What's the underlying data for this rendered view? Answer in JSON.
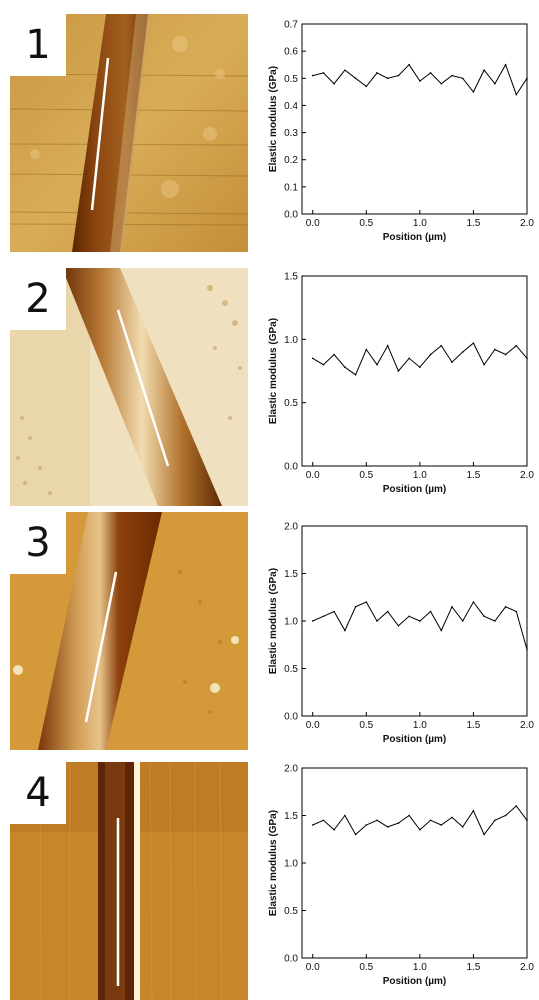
{
  "panels": [
    {
      "label": "1"
    },
    {
      "label": "2"
    },
    {
      "label": "3"
    },
    {
      "label": "4"
    }
  ],
  "chart_data": [
    {
      "type": "line",
      "xlabel": "Position (µm)",
      "ylabel": "Elastic modulus (GPa)",
      "xlim": [
        -0.1,
        2.0
      ],
      "ylim": [
        0.0,
        0.7
      ],
      "xticks": [
        "0.0",
        "0.5",
        "1.0",
        "1.5",
        "2.0"
      ],
      "yticks": [
        "0.0",
        "0.1",
        "0.2",
        "0.3",
        "0.4",
        "0.5",
        "0.6",
        "0.7"
      ],
      "ytick_values": [
        0.0,
        0.1,
        0.2,
        0.3,
        0.4,
        0.5,
        0.6,
        0.7
      ],
      "x": [
        0.0,
        0.1,
        0.2,
        0.3,
        0.4,
        0.5,
        0.6,
        0.7,
        0.8,
        0.9,
        1.0,
        1.1,
        1.2,
        1.3,
        1.4,
        1.5,
        1.6,
        1.7,
        1.8,
        1.9,
        2.0
      ],
      "values": [
        0.51,
        0.52,
        0.48,
        0.53,
        0.5,
        0.47,
        0.52,
        0.5,
        0.51,
        0.55,
        0.49,
        0.52,
        0.48,
        0.51,
        0.5,
        0.45,
        0.53,
        0.48,
        0.55,
        0.44,
        0.5
      ]
    },
    {
      "type": "line",
      "xlabel": "Position (µm)",
      "ylabel": "Elastic modulus (GPa)",
      "xlim": [
        -0.1,
        2.0
      ],
      "ylim": [
        0.0,
        1.5
      ],
      "xticks": [
        "0.0",
        "0.5",
        "1.0",
        "1.5",
        "2.0"
      ],
      "yticks": [
        "0.0",
        "0.5",
        "1.0",
        "1.5"
      ],
      "ytick_values": [
        0.0,
        0.5,
        1.0,
        1.5
      ],
      "x": [
        0.0,
        0.1,
        0.2,
        0.3,
        0.4,
        0.5,
        0.6,
        0.7,
        0.8,
        0.9,
        1.0,
        1.1,
        1.2,
        1.3,
        1.4,
        1.5,
        1.6,
        1.7,
        1.8,
        1.9,
        2.0
      ],
      "values": [
        0.85,
        0.8,
        0.88,
        0.78,
        0.72,
        0.92,
        0.8,
        0.95,
        0.75,
        0.85,
        0.78,
        0.88,
        0.95,
        0.82,
        0.9,
        0.97,
        0.8,
        0.92,
        0.88,
        0.95,
        0.85
      ]
    },
    {
      "type": "line",
      "xlabel": "Position (µm)",
      "ylabel": "Elastic modulus (GPa)",
      "xlim": [
        -0.1,
        2.0
      ],
      "ylim": [
        0.0,
        2.0
      ],
      "xticks": [
        "0.0",
        "0.5",
        "1.0",
        "1.5",
        "2.0"
      ],
      "yticks": [
        "0.0",
        "0.5",
        "1.0",
        "1.5",
        "2.0"
      ],
      "ytick_values": [
        0.0,
        0.5,
        1.0,
        1.5,
        2.0
      ],
      "x": [
        0.0,
        0.1,
        0.2,
        0.3,
        0.4,
        0.5,
        0.6,
        0.7,
        0.8,
        0.9,
        1.0,
        1.1,
        1.2,
        1.3,
        1.4,
        1.5,
        1.6,
        1.7,
        1.8,
        1.9,
        2.0
      ],
      "values": [
        1.0,
        1.05,
        1.1,
        0.9,
        1.15,
        1.2,
        1.0,
        1.1,
        0.95,
        1.05,
        1.0,
        1.1,
        0.9,
        1.15,
        1.0,
        1.2,
        1.05,
        1.0,
        1.15,
        1.1,
        0.7
      ]
    },
    {
      "type": "line",
      "xlabel": "Position (µm)",
      "ylabel": "Elastic modulus (GPa)",
      "xlim": [
        -0.1,
        2.0
      ],
      "ylim": [
        0.0,
        2.0
      ],
      "xticks": [
        "0.0",
        "0.5",
        "1.0",
        "1.5",
        "2.0"
      ],
      "yticks": [
        "0.0",
        "0.5",
        "1.0",
        "1.5",
        "2.0"
      ],
      "ytick_values": [
        0.0,
        0.5,
        1.0,
        1.5,
        2.0
      ],
      "x": [
        0.0,
        0.1,
        0.2,
        0.3,
        0.4,
        0.5,
        0.6,
        0.7,
        0.8,
        0.9,
        1.0,
        1.1,
        1.2,
        1.3,
        1.4,
        1.5,
        1.6,
        1.7,
        1.8,
        1.9,
        2.0
      ],
      "values": [
        1.4,
        1.45,
        1.35,
        1.5,
        1.3,
        1.4,
        1.45,
        1.38,
        1.42,
        1.5,
        1.35,
        1.45,
        1.4,
        1.48,
        1.38,
        1.55,
        1.3,
        1.45,
        1.5,
        1.6,
        1.45
      ]
    }
  ]
}
